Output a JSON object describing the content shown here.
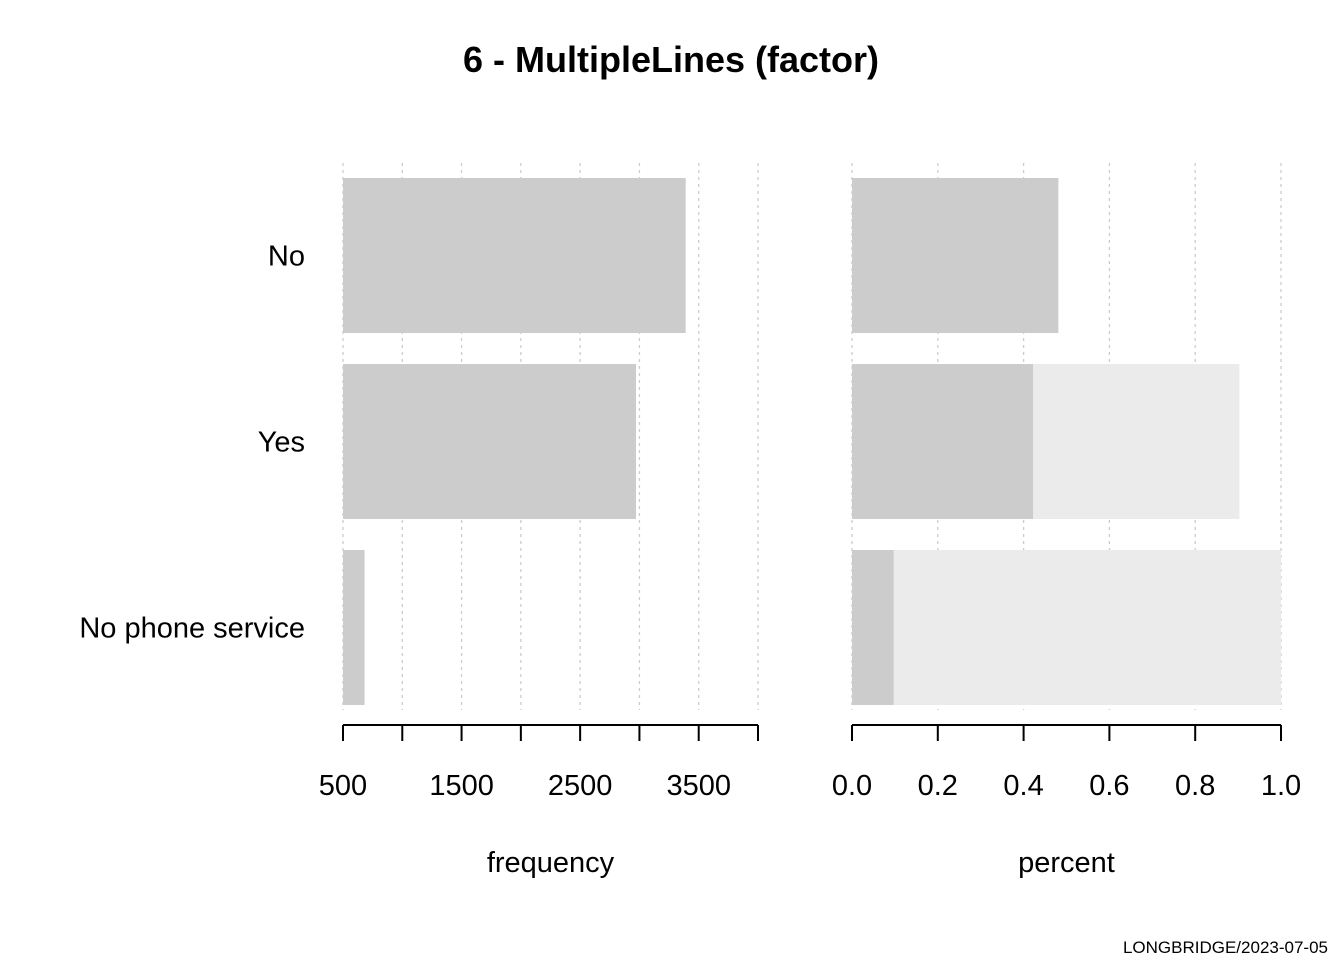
{
  "chart_data": [
    {
      "type": "bar",
      "orientation": "horizontal",
      "title": "6 - MultipleLines (factor)",
      "categories": [
        "No",
        "Yes",
        "No phone service"
      ],
      "values": [
        3390,
        2971,
        682
      ],
      "xlabel": "frequency",
      "xlim": [
        500,
        4000
      ],
      "xticks": [
        500,
        1000,
        1500,
        2000,
        2500,
        3000,
        3500,
        4000
      ],
      "xtick_labels": [
        "500",
        "",
        "1500",
        "",
        "2500",
        "",
        "3500",
        ""
      ],
      "grid": "vertical-dotted",
      "colors": {
        "bar": "#cccccc",
        "grid": "#cccccc"
      }
    },
    {
      "type": "bar",
      "orientation": "horizontal",
      "stacked": "cumulative",
      "categories": [
        "No",
        "Yes",
        "No phone service"
      ],
      "values": [
        0.481,
        0.422,
        0.097
      ],
      "cumulative": [
        0.481,
        0.903,
        1.0
      ],
      "xlabel": "percent",
      "xlim": [
        0,
        1
      ],
      "xticks": [
        0,
        0.2,
        0.4,
        0.6,
        0.8,
        1.0
      ],
      "xtick_labels": [
        "0.0",
        "0.2",
        "0.4",
        "0.6",
        "0.8",
        "1.0"
      ],
      "grid": "vertical-dotted",
      "colors": {
        "bar": "#cccccc",
        "cumulative": "#ebebeb",
        "grid": "#cccccc"
      }
    }
  ],
  "footer": {
    "credit": "LONGBRIDGE/2023-07-05"
  }
}
